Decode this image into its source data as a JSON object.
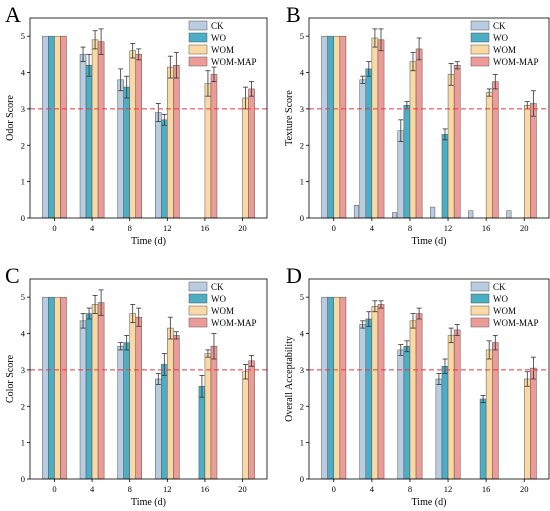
{
  "chart_data": [
    {
      "panel_label": "A",
      "type": "bar",
      "categories": [
        "0",
        "4",
        "8",
        "12",
        "16",
        "20"
      ],
      "xlabel": "Time (d)",
      "ylabel": "Odor Score",
      "ylim": [
        0,
        5.5
      ],
      "yticks": [
        0,
        1,
        2,
        3,
        4,
        5
      ],
      "reference_line": 3,
      "legend": "top-right",
      "series": [
        {
          "name": "CK",
          "color": "#b9cde2",
          "values": [
            5.0,
            4.5,
            3.8,
            2.9,
            null,
            null
          ],
          "errors": [
            0,
            0.2,
            0.3,
            0.25,
            0,
            0
          ]
        },
        {
          "name": "WO",
          "color": "#4baec4",
          "values": [
            5.0,
            4.2,
            3.6,
            2.7,
            null,
            null
          ],
          "errors": [
            0,
            0.3,
            0.3,
            0.15,
            0,
            0
          ]
        },
        {
          "name": "WOM",
          "color": "#fad9a3",
          "values": [
            5.0,
            4.9,
            4.6,
            4.15,
            3.7,
            3.3
          ],
          "errors": [
            0,
            0.25,
            0.2,
            0.3,
            0.35,
            0.3
          ]
        },
        {
          "name": "WOM-MAP",
          "color": "#ec9b98",
          "values": [
            5.0,
            4.85,
            4.5,
            4.2,
            3.95,
            3.55
          ],
          "errors": [
            0,
            0.35,
            0.15,
            0.35,
            0.2,
            0.2
          ]
        }
      ]
    },
    {
      "panel_label": "B",
      "type": "bar",
      "categories": [
        "0",
        "4",
        "8",
        "12",
        "16",
        "20"
      ],
      "xlabel": "Time (d)",
      "ylabel": "Texture Score",
      "ylim": [
        0,
        5.5
      ],
      "yticks": [
        0,
        1,
        2,
        3,
        4,
        5
      ],
      "reference_line": 3,
      "legend": "top-right",
      "series": [
        {
          "name": "CK",
          "color": "#b9cde2",
          "values": [
            5.0,
            3.8,
            2.4,
            null,
            null,
            null
          ],
          "errors": [
            0,
            0.1,
            0.3,
            0,
            0,
            0
          ]
        },
        {
          "name": "WO",
          "color": "#4baec4",
          "values": [
            5.0,
            4.1,
            3.1,
            2.3,
            null,
            null
          ],
          "errors": [
            0,
            0.2,
            0.1,
            0.15,
            0,
            0
          ]
        },
        {
          "name": "WOM",
          "color": "#fad9a3",
          "values": [
            5.0,
            4.95,
            4.3,
            3.95,
            3.45,
            3.1
          ],
          "errors": [
            0,
            0.25,
            0.25,
            0.3,
            0.1,
            0.1
          ]
        },
        {
          "name": "WOM-MAP",
          "color": "#ec9b98",
          "values": [
            5.0,
            4.9,
            4.65,
            4.2,
            3.75,
            3.15
          ],
          "errors": [
            0,
            0.3,
            0.3,
            0.1,
            0.2,
            0.35
          ]
        }
      ],
      "small_marks": [
        {
          "category": "4",
          "value": 0.35
        },
        {
          "category": "8",
          "value": 0.15
        },
        {
          "category": "12",
          "value": 0.3
        },
        {
          "category": "16",
          "value": 0.2
        },
        {
          "category": "20",
          "value": 0.2
        }
      ]
    },
    {
      "panel_label": "C",
      "type": "bar",
      "categories": [
        "0",
        "4",
        "8",
        "12",
        "16",
        "20"
      ],
      "xlabel": "Time (d)",
      "ylabel": "Color Score",
      "ylim": [
        0,
        5.5
      ],
      "yticks": [
        0,
        1,
        2,
        3,
        4,
        5
      ],
      "reference_line": 3,
      "legend": "top-right",
      "series": [
        {
          "name": "CK",
          "color": "#b9cde2",
          "values": [
            5.0,
            4.35,
            3.65,
            2.75,
            null,
            null
          ],
          "errors": [
            0,
            0.2,
            0.1,
            0.15,
            0,
            0
          ]
        },
        {
          "name": "WO",
          "color": "#4baec4",
          "values": [
            5.0,
            4.55,
            3.75,
            3.15,
            2.55,
            null
          ],
          "errors": [
            0,
            0.15,
            0.2,
            0.3,
            0.3,
            0
          ]
        },
        {
          "name": "WOM",
          "color": "#fad9a3",
          "values": [
            5.0,
            4.8,
            4.55,
            4.15,
            3.45,
            2.95
          ],
          "errors": [
            0,
            0.25,
            0.25,
            0.3,
            0.1,
            0.2
          ]
        },
        {
          "name": "WOM-MAP",
          "color": "#ec9b98",
          "values": [
            5.0,
            4.85,
            4.45,
            3.95,
            3.65,
            3.25
          ],
          "errors": [
            0,
            0.35,
            0.25,
            0.1,
            0.35,
            0.15
          ]
        }
      ]
    },
    {
      "panel_label": "D",
      "type": "bar",
      "categories": [
        "0",
        "4",
        "8",
        "12",
        "16",
        "20"
      ],
      "xlabel": "Time (d)",
      "ylabel": "Overall Acceptability",
      "ylim": [
        0,
        5.5
      ],
      "yticks": [
        0,
        1,
        2,
        3,
        4,
        5
      ],
      "reference_line": 3,
      "legend": "top-right",
      "series": [
        {
          "name": "CK",
          "color": "#b9cde2",
          "values": [
            5.0,
            4.25,
            3.55,
            2.75,
            null,
            null
          ],
          "errors": [
            0,
            0.1,
            0.15,
            0.15,
            0,
            0
          ]
        },
        {
          "name": "WO",
          "color": "#4baec4",
          "values": [
            5.0,
            4.4,
            3.65,
            3.1,
            2.2,
            null
          ],
          "errors": [
            0,
            0.2,
            0.15,
            0.2,
            0.1,
            0
          ]
        },
        {
          "name": "WOM",
          "color": "#fad9a3",
          "values": [
            5.0,
            4.75,
            4.35,
            3.95,
            3.55,
            2.75
          ],
          "errors": [
            0,
            0.15,
            0.2,
            0.2,
            0.25,
            0.2
          ]
        },
        {
          "name": "WOM-MAP",
          "color": "#ec9b98",
          "values": [
            5.0,
            4.8,
            4.55,
            4.1,
            3.75,
            3.05
          ],
          "errors": [
            0,
            0.1,
            0.15,
            0.15,
            0.2,
            0.3
          ]
        }
      ]
    }
  ]
}
